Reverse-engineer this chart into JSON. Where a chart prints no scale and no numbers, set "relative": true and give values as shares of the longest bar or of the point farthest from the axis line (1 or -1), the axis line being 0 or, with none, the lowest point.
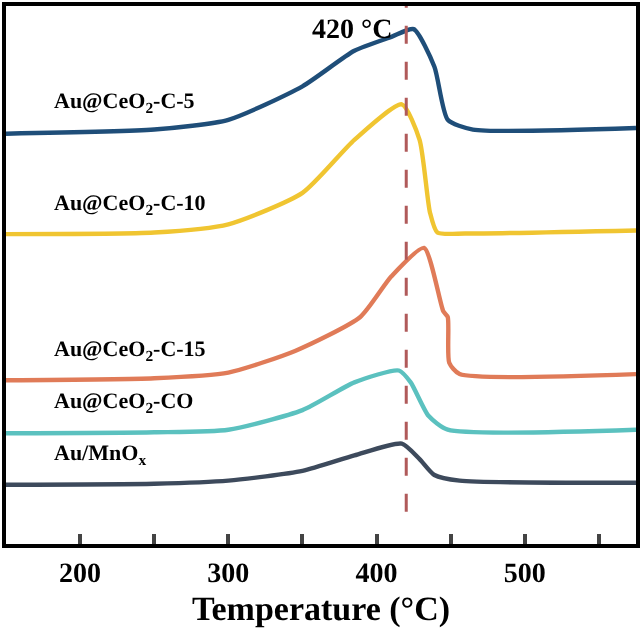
{
  "chart_data": {
    "type": "line",
    "relative": true,
    "xlabel": "Temperature (°C)",
    "xlim": [
      150,
      575
    ],
    "xticks": [
      200,
      {
        "value": 250,
        "label": null
      },
      300,
      {
        "value": 350,
        "label": null
      },
      400,
      {
        "value": 450,
        "label": null
      },
      500,
      {
        "value": 550,
        "label": null
      }
    ],
    "legend": false,
    "marker": "none",
    "line_style": "solid",
    "ref_lines": [
      {
        "axis": "x",
        "value": 420,
        "label": "420 °C",
        "color": "#b05a5a",
        "line_style": "dashed"
      }
    ],
    "series": [
      {
        "name": "Au@CeO$_{2}$-C-5",
        "color": "#1f4e79",
        "x": [
          150,
          250,
          300,
          350,
          385,
          410,
          425,
          439,
          448,
          465,
          575
        ],
        "values": [
          0.797,
          0.805,
          0.824,
          0.889,
          0.958,
          0.985,
          1.0,
          0.927,
          0.824,
          0.805,
          0.808
        ]
      },
      {
        "name": "Au@CeO$_{2}$-C-10",
        "color": "#f0c531",
        "x": [
          150,
          250,
          300,
          350,
          385,
          417,
          429,
          436,
          441,
          460,
          575
        ],
        "values": [
          0.602,
          0.605,
          0.621,
          0.682,
          0.785,
          0.854,
          0.785,
          0.644,
          0.605,
          0.603,
          0.609
        ]
      },
      {
        "name": "Au@CeO$_{2}$-C-15",
        "color": "#e07b58",
        "x": [
          150,
          250,
          300,
          345,
          389,
          410,
          432,
          445,
          448,
          449,
          456,
          575
        ],
        "values": [
          0.318,
          0.322,
          0.333,
          0.375,
          0.441,
          0.52,
          0.575,
          0.452,
          0.441,
          0.352,
          0.33,
          0.33
        ]
      },
      {
        "name": "Au@CeO$_{2}$-CO",
        "color": "#5bc1bf",
        "x": [
          150,
          250,
          300,
          350,
          385,
          415,
          423,
          435,
          448,
          575
        ],
        "values": [
          0.215,
          0.217,
          0.222,
          0.26,
          0.314,
          0.337,
          0.314,
          0.249,
          0.222,
          0.222
        ]
      },
      {
        "name": "Au/MnO$_{x}$",
        "color": "#3d4a5c",
        "x": [
          150,
          250,
          300,
          350,
          385,
          417,
          429,
          439,
          456,
          575
        ],
        "values": [
          0.115,
          0.117,
          0.123,
          0.142,
          0.172,
          0.195,
          0.165,
          0.134,
          0.123,
          0.119
        ]
      }
    ]
  }
}
